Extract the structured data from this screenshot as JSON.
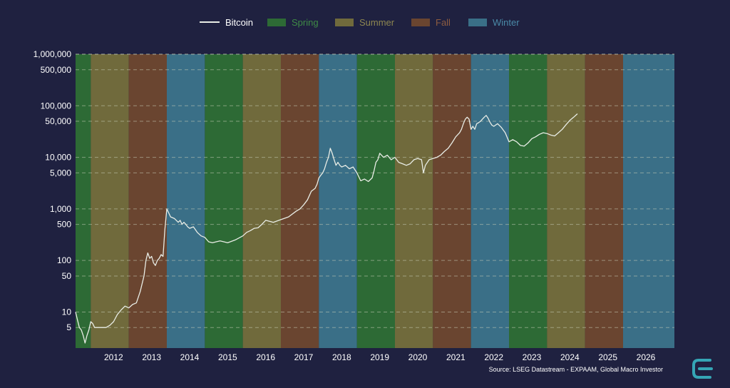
{
  "legend": {
    "bitcoin": "Bitcoin",
    "spring": "Spring",
    "summer": "Summer",
    "fall": "Fall",
    "winter": "Winter"
  },
  "colors": {
    "background": "#1f2140",
    "spring": "#2d6a35",
    "summer": "#706a3c",
    "fall": "#6a4530",
    "winter": "#3a6f87",
    "spring_text": "#3f8a46",
    "summer_text": "#8d8650",
    "fall_text": "#8d5c40",
    "winter_text": "#4a8aa8",
    "line": "#e9ede6",
    "grid": "#c8cdb8",
    "text": "#ffffff",
    "logo": "#35a6b5"
  },
  "source": "Source: LSEG Datastream - EXPAAM, Global Macro Investor",
  "logo_icon": "cycle-logo-icon",
  "chart_data": {
    "type": "line",
    "y_scale": "log",
    "ylim": [
      2,
      1000000
    ],
    "xlim": [
      2011.0,
      2026.75
    ],
    "y_ticks": [
      5,
      10,
      50,
      100,
      500,
      1000,
      5000,
      10000,
      50000,
      100000,
      500000,
      1000000
    ],
    "y_tick_labels": [
      "5",
      "10",
      "50",
      "100",
      "500",
      "1,000",
      "5,000",
      "10,000",
      "50,000",
      "100,000",
      "500,000",
      "1,000,000"
    ],
    "x_tick_labels": [
      "2012",
      "2013",
      "2014",
      "2015",
      "2016",
      "2017",
      "2018",
      "2019",
      "2020",
      "2021",
      "2022",
      "2023",
      "2024",
      "2025",
      "2026"
    ],
    "x_tick_positions": [
      2012.0,
      2013.0,
      2014.0,
      2015.0,
      2016.0,
      2017.0,
      2018.0,
      2019.0,
      2020.0,
      2021.0,
      2022.0,
      2023.0,
      2024.0,
      2025.0,
      2026.0
    ],
    "grid": "horizontal dashed",
    "legend_position": "top-center",
    "seasons": [
      {
        "season": "Spring",
        "start": 2011.0,
        "end": 2011.4
      },
      {
        "season": "Summer",
        "start": 2011.4,
        "end": 2012.4
      },
      {
        "season": "Fall",
        "start": 2012.4,
        "end": 2013.4
      },
      {
        "season": "Winter",
        "start": 2013.4,
        "end": 2014.4
      },
      {
        "season": "Spring",
        "start": 2014.4,
        "end": 2015.4
      },
      {
        "season": "Summer",
        "start": 2015.4,
        "end": 2016.4
      },
      {
        "season": "Fall",
        "start": 2016.4,
        "end": 2017.4
      },
      {
        "season": "Winter",
        "start": 2017.4,
        "end": 2018.4
      },
      {
        "season": "Spring",
        "start": 2018.4,
        "end": 2019.4
      },
      {
        "season": "Summer",
        "start": 2019.4,
        "end": 2020.4
      },
      {
        "season": "Fall",
        "start": 2020.4,
        "end": 2021.4
      },
      {
        "season": "Winter",
        "start": 2021.4,
        "end": 2022.4
      },
      {
        "season": "Spring",
        "start": 2022.4,
        "end": 2023.4
      },
      {
        "season": "Summer",
        "start": 2023.4,
        "end": 2024.4
      },
      {
        "season": "Fall",
        "start": 2024.4,
        "end": 2025.4
      },
      {
        "season": "Winter",
        "start": 2025.4,
        "end": 2026.75
      }
    ],
    "series": [
      {
        "name": "Bitcoin",
        "x": [
          2011.0,
          2011.05,
          2011.1,
          2011.15,
          2011.2,
          2011.25,
          2011.3,
          2011.35,
          2011.4,
          2011.45,
          2011.5,
          2011.6,
          2011.7,
          2011.8,
          2011.9,
          2012.0,
          2012.1,
          2012.2,
          2012.3,
          2012.4,
          2012.5,
          2012.6,
          2012.7,
          2012.8,
          2012.85,
          2012.9,
          2012.95,
          2013.0,
          2013.05,
          2013.1,
          2013.15,
          2013.2,
          2013.25,
          2013.3,
          2013.35,
          2013.4,
          2013.5,
          2013.6,
          2013.7,
          2013.75,
          2013.8,
          2013.85,
          2013.9,
          2013.95,
          2014.0,
          2014.1,
          2014.2,
          2014.3,
          2014.4,
          2014.5,
          2014.6,
          2014.7,
          2014.8,
          2014.9,
          2015.0,
          2015.2,
          2015.4,
          2015.5,
          2015.6,
          2015.7,
          2015.8,
          2015.9,
          2016.0,
          2016.2,
          2016.4,
          2016.6,
          2016.8,
          2016.9,
          2017.0,
          2017.1,
          2017.2,
          2017.3,
          2017.35,
          2017.4,
          2017.45,
          2017.5,
          2017.55,
          2017.6,
          2017.65,
          2017.7,
          2017.75,
          2017.8,
          2017.85,
          2017.9,
          2017.95,
          2018.0,
          2018.1,
          2018.2,
          2018.3,
          2018.4,
          2018.5,
          2018.6,
          2018.7,
          2018.8,
          2018.85,
          2018.9,
          2018.95,
          2019.0,
          2019.1,
          2019.2,
          2019.3,
          2019.4,
          2019.5,
          2019.6,
          2019.7,
          2019.8,
          2019.9,
          2020.0,
          2020.1,
          2020.15,
          2020.2,
          2020.3,
          2020.4,
          2020.5,
          2020.6,
          2020.7,
          2020.8,
          2020.9,
          2021.0,
          2021.1,
          2021.15,
          2021.2,
          2021.25,
          2021.3,
          2021.35,
          2021.4,
          2021.45,
          2021.5,
          2021.55,
          2021.6,
          2021.65,
          2021.7,
          2021.75,
          2021.8,
          2021.85,
          2021.9,
          2021.95,
          2022.0,
          2022.1,
          2022.2,
          2022.3,
          2022.4,
          2022.5,
          2022.6,
          2022.7,
          2022.8,
          2022.9,
          2023.0,
          2023.1,
          2023.2,
          2023.3,
          2023.4,
          2023.5,
          2023.6,
          2023.7,
          2023.8,
          2023.9,
          2024.0,
          2024.1,
          2024.2
        ],
        "y": [
          10,
          7,
          5,
          4.5,
          3.5,
          2.5,
          3.5,
          4.5,
          6.5,
          6,
          5,
          5,
          5,
          5,
          5.5,
          6.5,
          9,
          11,
          13,
          12,
          14,
          15,
          25,
          50,
          100,
          140,
          110,
          120,
          90,
          80,
          100,
          110,
          130,
          120,
          400,
          1000,
          700,
          650,
          550,
          600,
          500,
          550,
          500,
          450,
          420,
          450,
          350,
          300,
          280,
          230,
          220,
          230,
          240,
          230,
          220,
          250,
          300,
          350,
          380,
          420,
          430,
          500,
          600,
          550,
          620,
          700,
          900,
          1000,
          1200,
          1500,
          2200,
          2500,
          3000,
          4000,
          4500,
          5000,
          6000,
          8000,
          10000,
          15000,
          12000,
          9000,
          7000,
          8000,
          7000,
          6500,
          7000,
          6000,
          6500,
          5000,
          3500,
          3800,
          3400,
          4000,
          5500,
          8000,
          9000,
          12000,
          10000,
          11000,
          9000,
          10000,
          8000,
          7500,
          7000,
          7500,
          9000,
          9500,
          9000,
          5000,
          7000,
          9000,
          9500,
          10000,
          11000,
          13000,
          15000,
          19000,
          25000,
          30000,
          35000,
          45000,
          55000,
          60000,
          55000,
          35000,
          40000,
          35000,
          45000,
          47000,
          50000,
          55000,
          60000,
          65000,
          57000,
          48000,
          42000,
          40000,
          45000,
          38000,
          30000,
          20000,
          22000,
          20000,
          17000,
          16500,
          19000,
          23000,
          25000,
          28000,
          30000,
          29000,
          27000,
          26000,
          30000,
          35000,
          43000,
          52000,
          60000,
          70000
        ]
      }
    ]
  },
  "axis": {
    "y_labels": [
      "5",
      "10",
      "50",
      "100",
      "500",
      "1,000",
      "5,000",
      "10,000",
      "50,000",
      "100,000",
      "500,000",
      "1,000,000"
    ]
  }
}
